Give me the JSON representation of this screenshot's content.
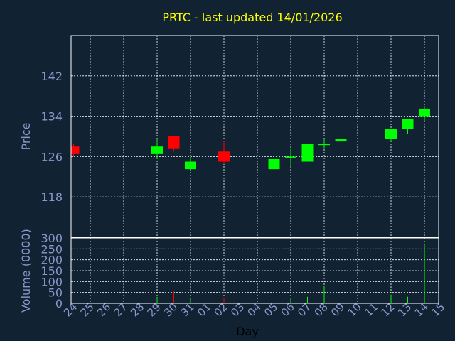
{
  "colors": {
    "background": "#112233",
    "title": "#ffff00",
    "text": "#8899cc",
    "axis_title": "#000000",
    "grid": "#ffffff",
    "up": "#00ff00",
    "down": "#ff0000"
  },
  "chart_data": {
    "type": "candlestick",
    "title": "PRTC - last updated 14/01/2026",
    "xlabel": "Day",
    "price_panel": {
      "ylabel": "Price",
      "ylim": [
        110,
        150
      ],
      "yticks": [
        118,
        126,
        134,
        142
      ],
      "grid": true
    },
    "volume_panel": {
      "ylabel": "Volume (0000)",
      "ylim": [
        0,
        300
      ],
      "yticks": [
        0,
        50,
        100,
        150,
        200,
        250,
        300
      ],
      "grid": true
    },
    "days": [
      "24",
      "25",
      "26",
      "27",
      "28",
      "29",
      "30",
      "31",
      "01",
      "02",
      "03",
      "04",
      "05",
      "06",
      "07",
      "08",
      "09",
      "10",
      "11",
      "12",
      "13",
      "14",
      "15"
    ],
    "candles": [
      {
        "day": "24",
        "open": 128.0,
        "high": 128.5,
        "low": 126.0,
        "close": 126.5,
        "volume": 0
      },
      {
        "day": "29",
        "open": 126.5,
        "high": 129.5,
        "low": 125.5,
        "close": 128.0,
        "volume": 30
      },
      {
        "day": "30",
        "open": 130.0,
        "high": 130.0,
        "low": 127.0,
        "close": 127.5,
        "volume": 55
      },
      {
        "day": "31",
        "open": 123.5,
        "high": 126.0,
        "low": 123.5,
        "close": 125.0,
        "volume": 20
      },
      {
        "day": "02",
        "open": 127.0,
        "high": 129.0,
        "low": 124.5,
        "close": 125.0,
        "volume": 25
      },
      {
        "day": "05",
        "open": 123.5,
        "high": 125.5,
        "low": 123.5,
        "close": 125.5,
        "volume": 70
      },
      {
        "day": "06",
        "open": 126.0,
        "high": 127.5,
        "low": 124.0,
        "close": 126.0,
        "volume": 25
      },
      {
        "day": "07",
        "open": 125.0,
        "high": 128.5,
        "low": 125.0,
        "close": 128.5,
        "volume": 30
      },
      {
        "day": "08",
        "open": 128.5,
        "high": 129.5,
        "low": 127.5,
        "close": 128.5,
        "volume": 80
      },
      {
        "day": "09",
        "open": 129.0,
        "high": 130.5,
        "low": 128.0,
        "close": 129.5,
        "volume": 50
      },
      {
        "day": "12",
        "open": 129.5,
        "high": 131.5,
        "low": 129.0,
        "close": 131.5,
        "volume": 40
      },
      {
        "day": "13",
        "open": 131.5,
        "high": 133.5,
        "low": 130.5,
        "close": 133.5,
        "volume": 30
      },
      {
        "day": "14",
        "open": 134.0,
        "high": 136.0,
        "low": 133.0,
        "close": 135.5,
        "volume": 275
      }
    ]
  }
}
